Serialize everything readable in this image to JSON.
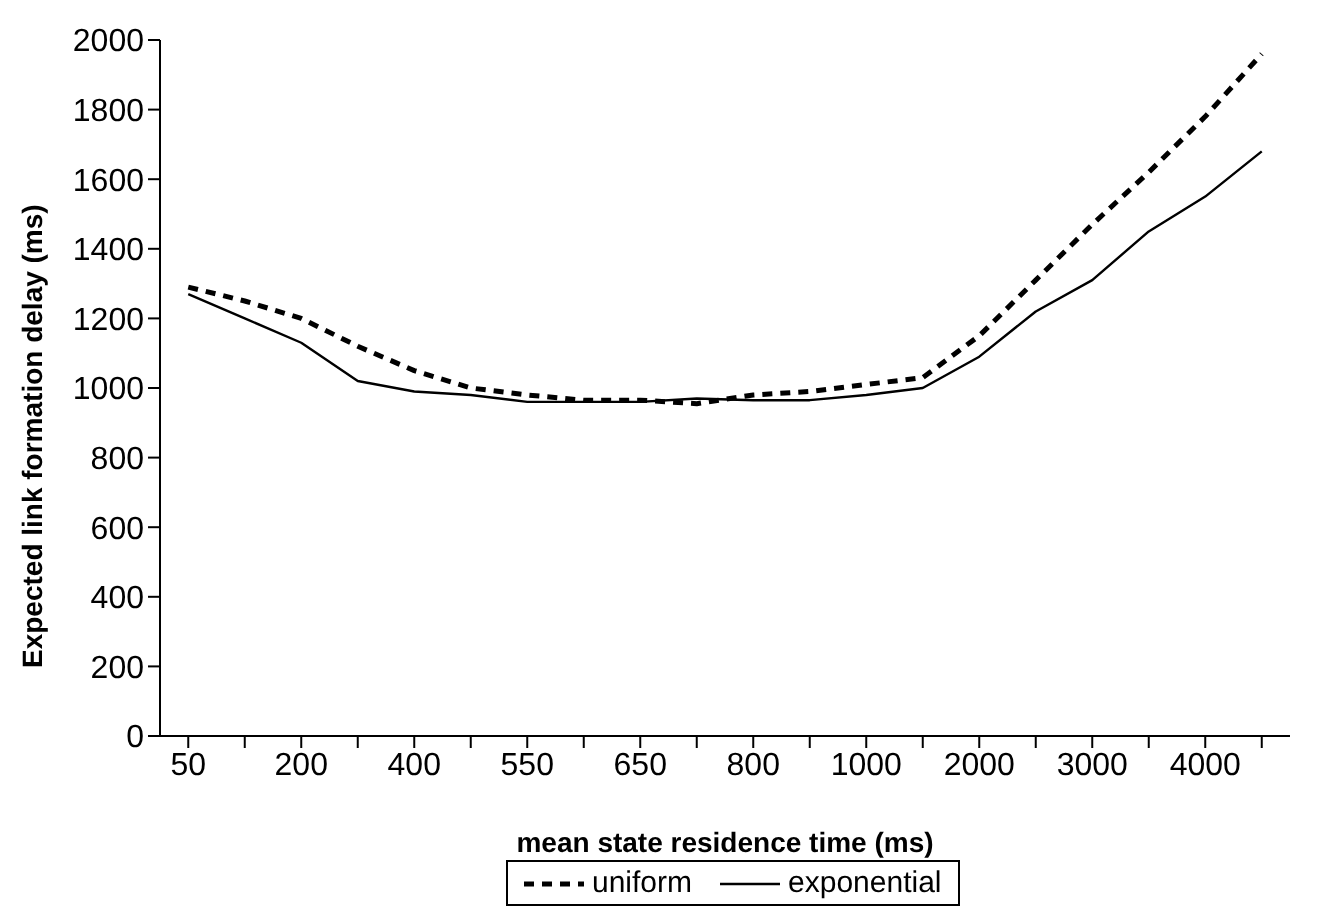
{
  "chart_data": {
    "type": "line",
    "xlabel": "mean state residence time (ms)",
    "ylabel": "Expected link formation delay (ms)",
    "categories": [
      "50",
      null,
      "200",
      null,
      "400",
      null,
      "550",
      null,
      "650",
      null,
      "800",
      null,
      "1000",
      null,
      "2000",
      null,
      "3000",
      null,
      "4000",
      null
    ],
    "series": [
      {
        "name": "uniform",
        "color": "#000000",
        "line_style": "dashed",
        "values": [
          1290,
          1250,
          1200,
          1120,
          1050,
          1000,
          980,
          965,
          965,
          955,
          980,
          990,
          1010,
          1030,
          1150,
          1310,
          1470,
          1620,
          1780,
          1960
        ]
      },
      {
        "name": "exponential",
        "color": "#000000",
        "line_style": "solid",
        "values": [
          1270,
          1200,
          1130,
          1020,
          990,
          980,
          960,
          960,
          960,
          970,
          965,
          965,
          980,
          1000,
          1090,
          1220,
          1310,
          1450,
          1550,
          1680
        ]
      }
    ],
    "ylim": [
      0,
      2000
    ],
    "yticks": [
      0,
      200,
      400,
      600,
      800,
      1000,
      1200,
      1400,
      1600,
      1800,
      2000
    ],
    "grid": false,
    "legend": "bottom",
    "marker": "none"
  }
}
